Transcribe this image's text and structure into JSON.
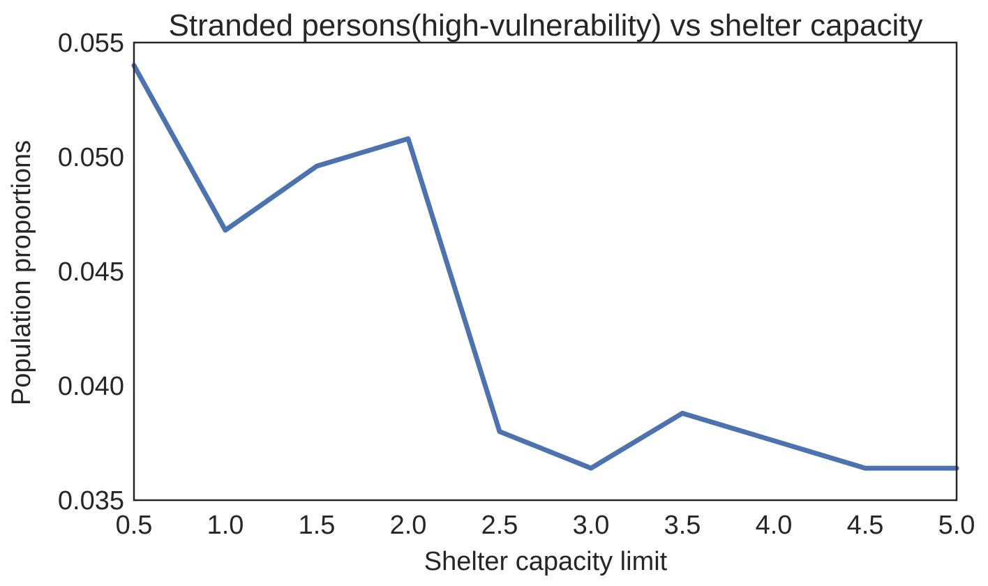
{
  "chart_data": {
    "type": "line",
    "title": "Stranded persons(high-vulnerability) vs shelter capacity",
    "xlabel": "Shelter capacity limit",
    "ylabel": "Population proportions",
    "x": [
      0.5,
      1.0,
      1.5,
      2.0,
      2.5,
      3.0,
      3.5,
      4.0,
      4.5,
      5.0
    ],
    "series": [
      {
        "values": [
          0.054,
          0.0468,
          0.0496,
          0.0508,
          0.038,
          0.0364,
          0.0388,
          0.0376,
          0.0364,
          0.0364
        ]
      }
    ],
    "xlim": [
      0.5,
      5.0
    ],
    "ylim": [
      0.035,
      0.055
    ],
    "xticks": [
      "0.5",
      "1.0",
      "1.5",
      "2.0",
      "2.5",
      "3.0",
      "3.5",
      "4.0",
      "4.5",
      "5.0"
    ],
    "yticks": [
      "0.035",
      "0.040",
      "0.045",
      "0.050",
      "0.055"
    ],
    "grid": false,
    "legend": "none",
    "colors": {
      "line": "#4c72b0",
      "axes": "#262626",
      "text": "#262626",
      "background": "#ffffff"
    }
  }
}
